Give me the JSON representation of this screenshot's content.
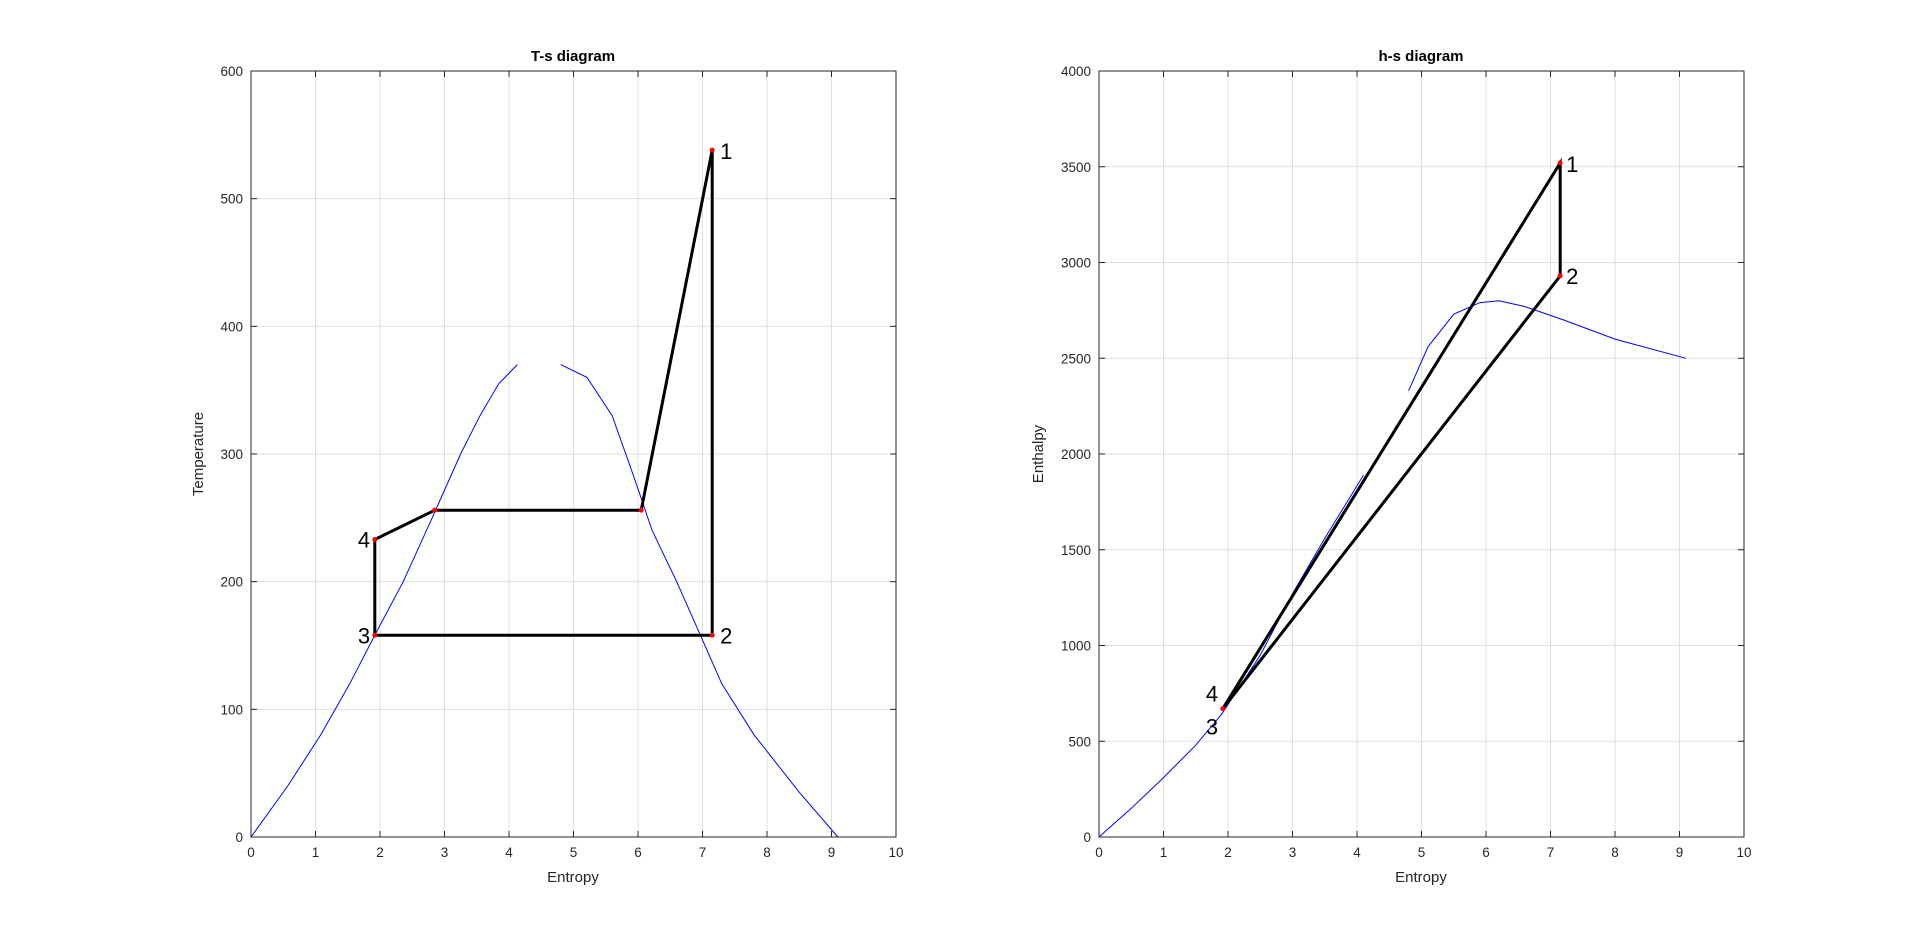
{
  "chart_data": [
    {
      "id": "ts",
      "type": "line",
      "title": "T-s diagram",
      "xlabel": "Entropy",
      "ylabel": "Temperature",
      "xlim": [
        0,
        10
      ],
      "ylim": [
        0,
        600
      ],
      "xticks": [
        "0",
        "1",
        "2",
        "3",
        "4",
        "5",
        "6",
        "7",
        "8",
        "9",
        "10"
      ],
      "yticks": [
        "0",
        "100",
        "200",
        "300",
        "400",
        "500",
        "600"
      ],
      "grid": true,
      "colors": {
        "dome": "#0000ff",
        "cycle": "#000000",
        "points": "#ff0000"
      },
      "saturation_liquid": [
        [
          0,
          0
        ],
        [
          0.57,
          40
        ],
        [
          1.08,
          80
        ],
        [
          1.53,
          120
        ],
        [
          1.94,
          160
        ],
        [
          2.36,
          200
        ],
        [
          2.81,
          250
        ],
        [
          3.25,
          300
        ],
        [
          3.55,
          330
        ],
        [
          3.84,
          355
        ],
        [
          4.13,
          370
        ]
      ],
      "saturation_vapor": [
        [
          4.8,
          370
        ],
        [
          5.21,
          360
        ],
        [
          5.6,
          330
        ],
        [
          5.95,
          280
        ],
        [
          6.22,
          240
        ],
        [
          6.6,
          200
        ],
        [
          6.95,
          160
        ],
        [
          7.3,
          120
        ],
        [
          7.8,
          80
        ],
        [
          8.5,
          35
        ],
        [
          9.1,
          0
        ]
      ],
      "cycle": [
        [
          1.92,
          158
        ],
        [
          1.92,
          233
        ],
        [
          2.85,
          256
        ],
        [
          6.05,
          256
        ],
        [
          7.15,
          538
        ],
        [
          7.15,
          158
        ],
        [
          1.92,
          158
        ]
      ],
      "state_points": [
        [
          7.15,
          538
        ],
        [
          7.15,
          158
        ],
        [
          1.92,
          158
        ],
        [
          1.92,
          233
        ],
        [
          2.85,
          256
        ],
        [
          6.05,
          256
        ]
      ],
      "annotations": [
        {
          "text": "1",
          "x": 7.15,
          "y": 538
        },
        {
          "text": "2",
          "x": 7.15,
          "y": 158
        },
        {
          "text": "3",
          "x": 1.92,
          "y": 158
        },
        {
          "text": "4",
          "x": 1.92,
          "y": 233
        }
      ]
    },
    {
      "id": "hs",
      "type": "line",
      "title": "h-s diagram",
      "xlabel": "Entropy",
      "ylabel": "Enthalpy",
      "xlim": [
        0,
        10
      ],
      "ylim": [
        0,
        4000
      ],
      "xticks": [
        "0",
        "1",
        "2",
        "3",
        "4",
        "5",
        "6",
        "7",
        "8",
        "9",
        "10"
      ],
      "yticks": [
        "0",
        "500",
        "1000",
        "1500",
        "2000",
        "2500",
        "3000",
        "3500",
        "4000"
      ],
      "grid": true,
      "colors": {
        "dome": "#0000ff",
        "cycle": "#000000",
        "points": "#ff0000"
      },
      "saturation_liquid": [
        [
          0,
          0
        ],
        [
          0.5,
          150
        ],
        [
          1.0,
          310
        ],
        [
          1.5,
          480
        ],
        [
          1.9,
          640
        ],
        [
          2.5,
          950
        ],
        [
          3.0,
          1270
        ],
        [
          3.5,
          1560
        ],
        [
          4.1,
          1890
        ]
      ],
      "saturation_vapor": [
        [
          4.8,
          2330
        ],
        [
          5.1,
          2560
        ],
        [
          5.5,
          2730
        ],
        [
          5.9,
          2790
        ],
        [
          6.2,
          2800
        ],
        [
          6.6,
          2770
        ],
        [
          7.2,
          2700
        ],
        [
          8.0,
          2600
        ],
        [
          9.1,
          2500
        ]
      ],
      "cycle": [
        [
          1.92,
          670
        ],
        [
          7.15,
          3520
        ],
        [
          7.15,
          2930
        ],
        [
          1.92,
          670
        ]
      ],
      "state_points": [
        [
          7.15,
          3520
        ],
        [
          7.15,
          2930
        ],
        [
          1.92,
          670
        ]
      ],
      "annotations": [
        {
          "text": "1",
          "x": 7.15,
          "y": 3520
        },
        {
          "text": "2",
          "x": 7.15,
          "y": 2930
        },
        {
          "text": "3",
          "x": 1.92,
          "y": 670
        },
        {
          "text": "4",
          "x": 1.92,
          "y": 670
        }
      ]
    }
  ]
}
